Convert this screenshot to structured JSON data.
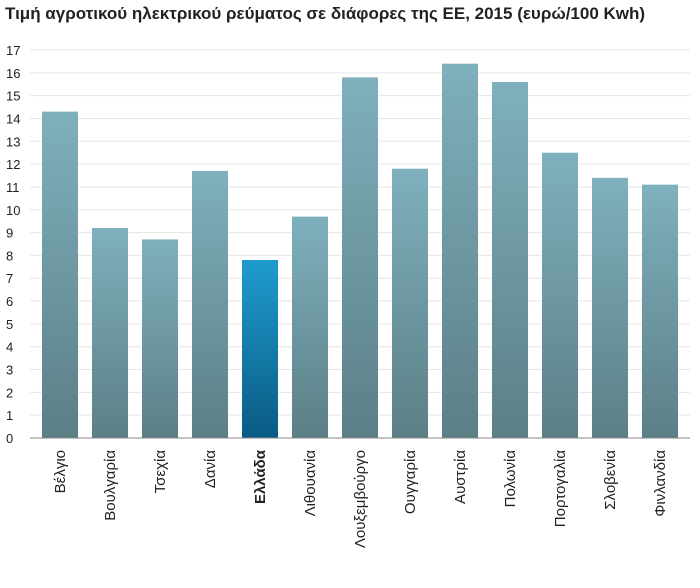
{
  "chart_data": {
    "type": "bar",
    "title": "Τιμή αγροτικού ηλεκτρικού ρεύματος σε διάφορες της ΕΕ, 2015 (ευρώ/100 Kwh)",
    "xlabel": "",
    "ylabel": "",
    "ylim": [
      0,
      17
    ],
    "yticks": [
      "0",
      "1",
      "2",
      "3",
      "4",
      "5",
      "6",
      "7",
      "8",
      "9",
      "10",
      "11",
      "12",
      "13",
      "14",
      "15",
      "16",
      "17"
    ],
    "grid": true,
    "legend": "none",
    "categories": [
      "Βέλγιο",
      "Βουλγαρία",
      "Τσεχία",
      "Δανία",
      "Ελλάδα",
      "Λιθουανία",
      "Λουξεμβούργο",
      "Ουγγαρία",
      "Αυστρία",
      "Πολωνία",
      "Πορτογαλία",
      "Σλοβενία",
      "Φινλανδία"
    ],
    "values": [
      14.3,
      9.2,
      8.7,
      11.7,
      7.8,
      9.7,
      15.8,
      11.8,
      16.4,
      15.6,
      12.5,
      11.4,
      11.1
    ],
    "highlight": "Ελλάδα",
    "colors": {
      "bar_top": "#7fb0bd",
      "bar_bottom": "#5b7f86",
      "highlight_top": "#1f9ccf",
      "highlight_bottom": "#0a5b83",
      "grid": "#e6e6e6",
      "axis": "#888888"
    }
  }
}
